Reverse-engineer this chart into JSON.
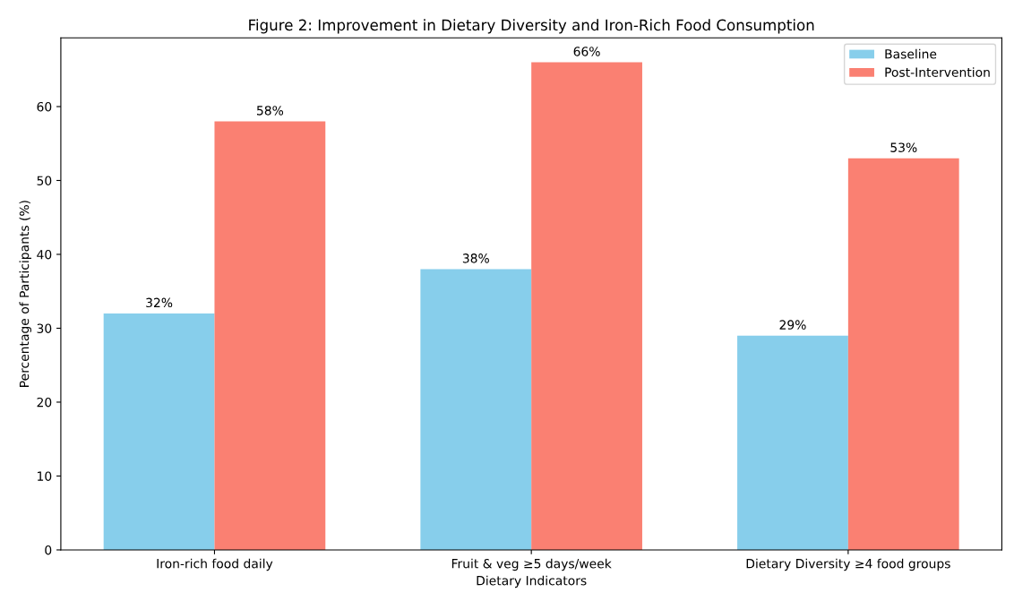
{
  "chart_data": {
    "type": "bar",
    "title": "Figure 2: Improvement in Dietary Diversity and Iron-Rich Food Consumption",
    "xlabel": "Dietary Indicators",
    "ylabel": "Percentage of Participants (%)",
    "categories": [
      "Iron-rich food daily",
      "Fruit & veg ≥5 days/week",
      "Dietary Diversity ≥4 food groups"
    ],
    "series": [
      {
        "name": "Baseline",
        "color": "#87ceeb",
        "values": [
          32,
          38,
          29
        ],
        "value_labels": [
          "32%",
          "38%",
          "29%"
        ]
      },
      {
        "name": "Post-Intervention",
        "color": "#fa8072",
        "values": [
          58,
          66,
          53
        ],
        "value_labels": [
          "58%",
          "66%",
          "53%"
        ]
      }
    ],
    "ylim": [
      0,
      69.3
    ],
    "yticks": [
      0,
      10,
      20,
      30,
      40,
      50,
      60
    ],
    "grid": false,
    "legend": "top right"
  }
}
